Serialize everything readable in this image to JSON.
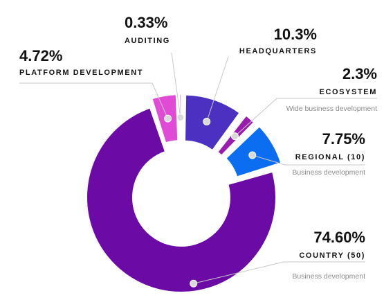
{
  "chart_data": {
    "type": "pie",
    "style": "donut-exploded",
    "slices": [
      {
        "id": "headquarters",
        "value": 10.3,
        "label": "10.3%",
        "name": "HEADQUARTERS",
        "sub": "",
        "color": "#4b30c2"
      },
      {
        "id": "ecosystem",
        "value": 2.3,
        "label": "2.3%",
        "name": "ECOSYSTEM",
        "sub": "Wide business development",
        "color": "#9a1cad"
      },
      {
        "id": "regional",
        "value": 7.75,
        "label": "7.75%",
        "name": "REGIONAL (10)",
        "sub": "Business development",
        "color": "#0b6df0"
      },
      {
        "id": "country",
        "value": 74.6,
        "label": "74.60%",
        "name": "COUNTRY (50)",
        "sub": "Business development",
        "color": "#6c0aa6"
      },
      {
        "id": "platform",
        "value": 4.72,
        "label": "4.72%",
        "name": "PLATFORM DEVELOPMENT",
        "sub": "",
        "color": "#e04bd6"
      },
      {
        "id": "auditing",
        "value": 0.33,
        "label": "0.33%",
        "name": "AUDITING",
        "sub": "",
        "color": "#f07fe8"
      }
    ]
  }
}
